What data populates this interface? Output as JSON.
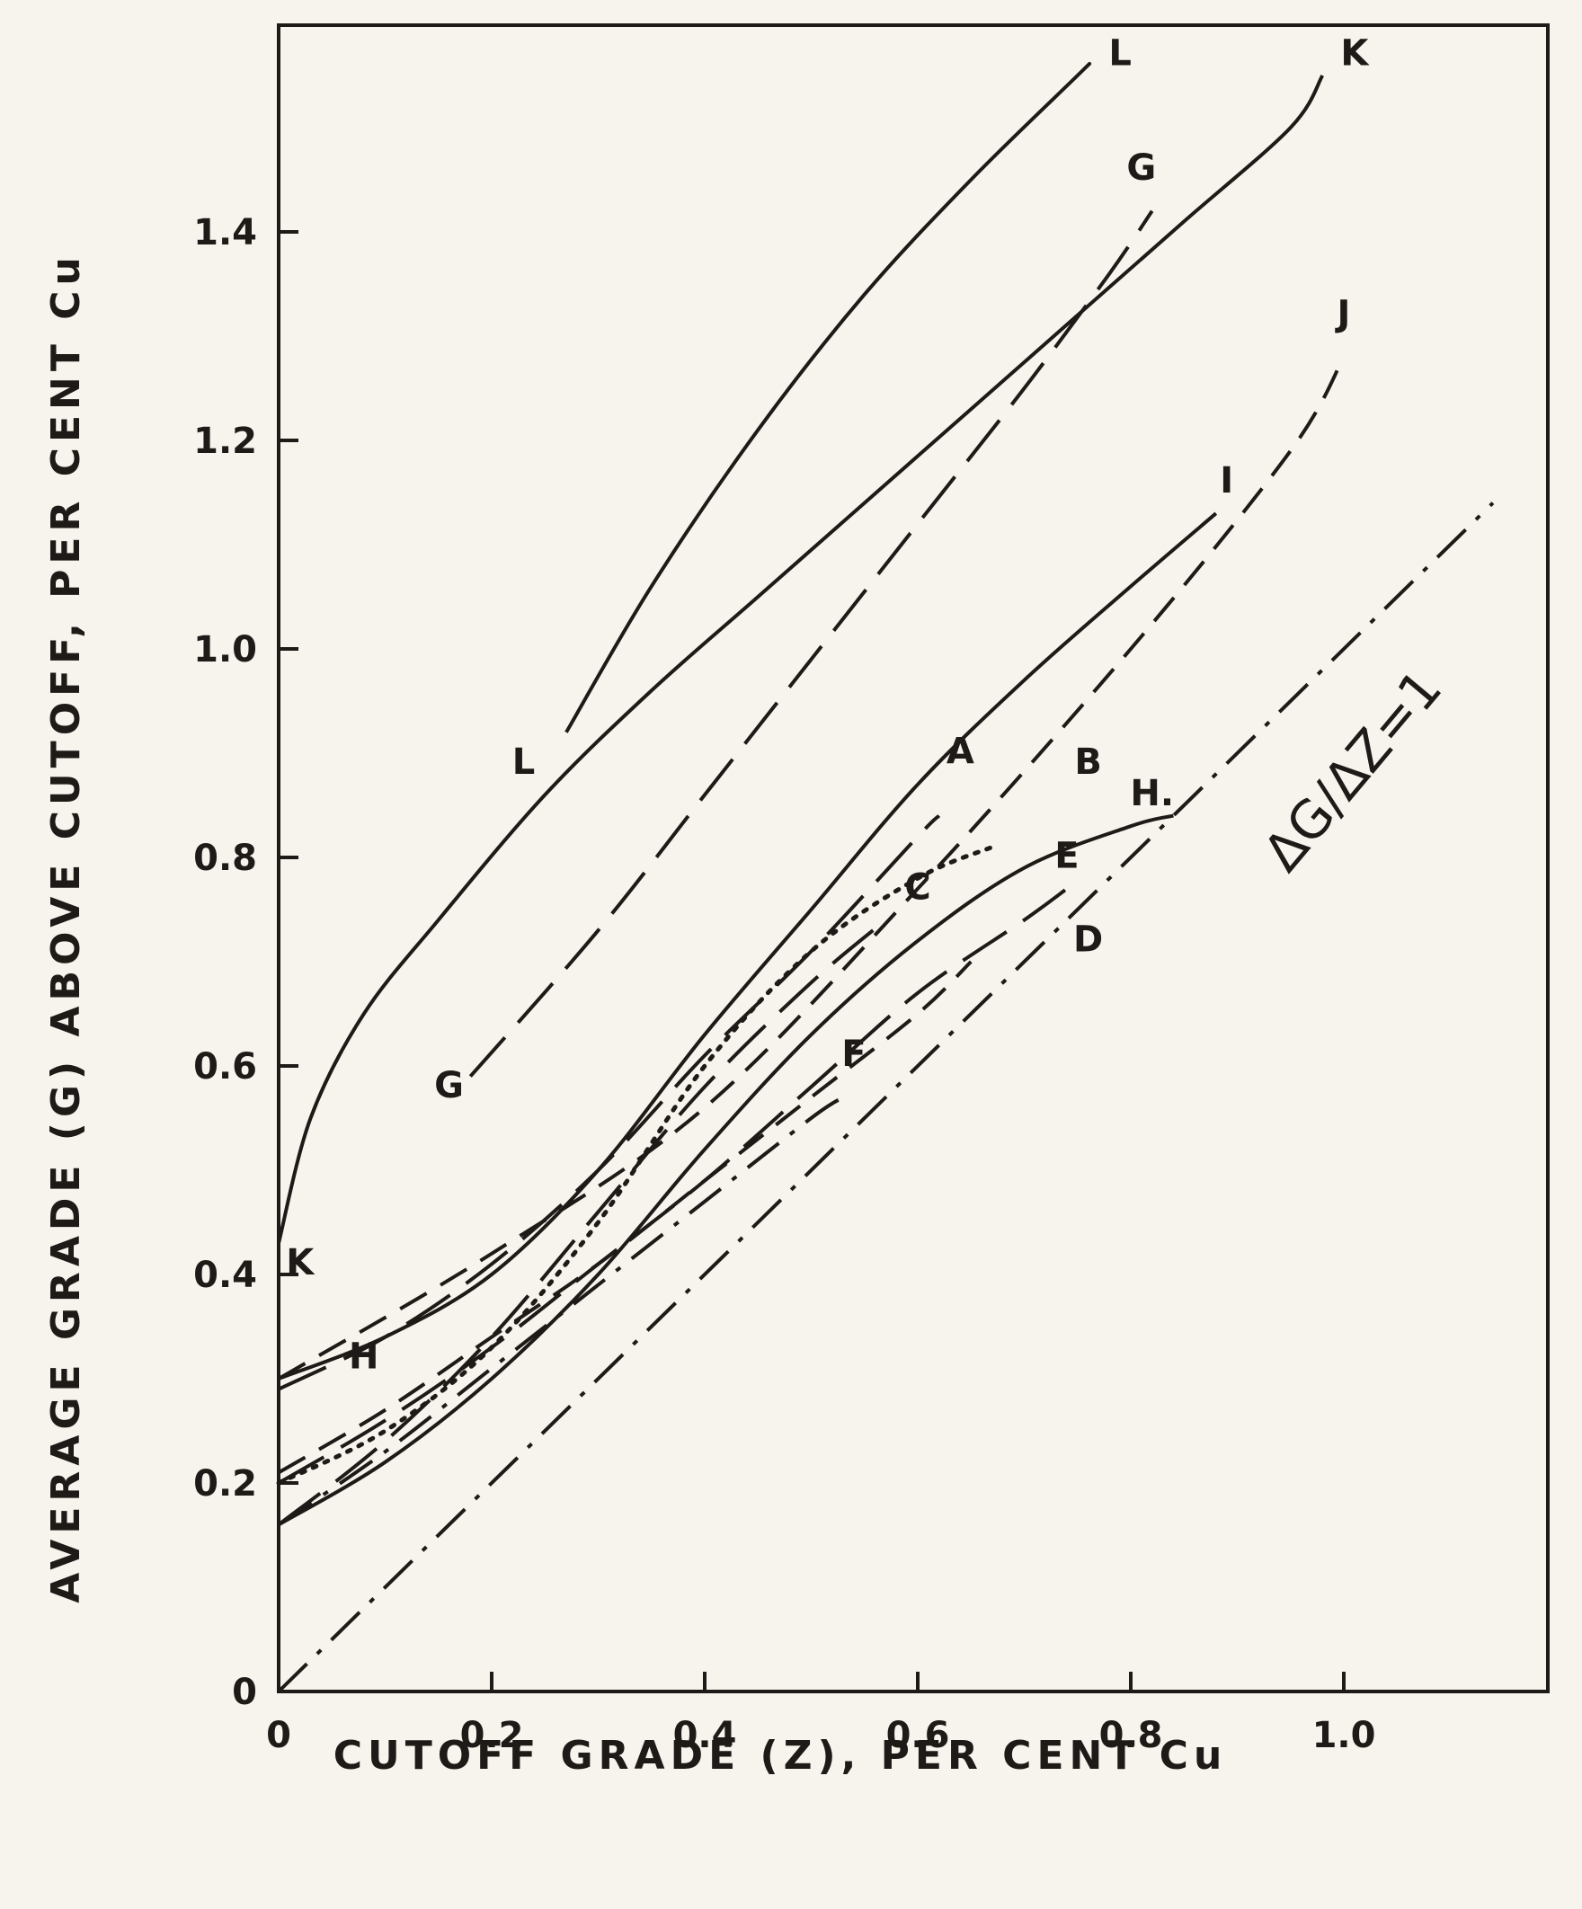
{
  "chart_data": {
    "type": "line",
    "title": "",
    "xlabel": "CUTOFF GRADE (Z), PER CENT Cu",
    "ylabel": "AVERAGE GRADE (G) ABOVE CUTOFF, PER CENT Cu",
    "xlim": [
      0,
      1.2
    ],
    "ylim": [
      0,
      1.6
    ],
    "x_ticks": [
      {
        "value": 0,
        "label": "0"
      },
      {
        "value": 0.2,
        "label": "0.2"
      },
      {
        "value": 0.4,
        "label": "0.4"
      },
      {
        "value": 0.6,
        "label": "0.6"
      },
      {
        "value": 0.8,
        "label": "0.8"
      },
      {
        "value": 1.0,
        "label": "1.0"
      }
    ],
    "y_ticks": [
      {
        "value": 0,
        "label": "0"
      },
      {
        "value": 0.2,
        "label": "0.2"
      },
      {
        "value": 0.4,
        "label": "0.4"
      },
      {
        "value": 0.6,
        "label": "0.6"
      },
      {
        "value": 0.8,
        "label": "0.8"
      },
      {
        "value": 1.0,
        "label": "1.0"
      },
      {
        "value": 1.2,
        "label": "1.2"
      },
      {
        "value": 1.4,
        "label": "1.4"
      }
    ],
    "grid": false,
    "annotation": "ΔG/ΔZ=1",
    "series": [
      {
        "name": "L",
        "style": "solid",
        "points": [
          [
            0.27,
            0.92
          ],
          [
            0.35,
            1.06
          ],
          [
            0.45,
            1.21
          ],
          [
            0.55,
            1.34
          ],
          [
            0.65,
            1.45
          ],
          [
            0.75,
            1.55
          ],
          [
            0.76,
            1.56
          ]
        ]
      },
      {
        "name": "K",
        "style": "solid",
        "points": [
          [
            0,
            0.43
          ],
          [
            0.03,
            0.55
          ],
          [
            0.08,
            0.65
          ],
          [
            0.15,
            0.74
          ],
          [
            0.25,
            0.86
          ],
          [
            0.35,
            0.96
          ],
          [
            0.45,
            1.05
          ],
          [
            0.55,
            1.14
          ],
          [
            0.65,
            1.23
          ],
          [
            0.75,
            1.32
          ],
          [
            0.85,
            1.41
          ],
          [
            0.95,
            1.5
          ],
          [
            0.98,
            1.55
          ]
        ]
      },
      {
        "name": "G",
        "style": "long-dash",
        "points": [
          [
            0.18,
            0.59
          ],
          [
            0.3,
            0.73
          ],
          [
            0.4,
            0.86
          ],
          [
            0.5,
            0.99
          ],
          [
            0.6,
            1.12
          ],
          [
            0.7,
            1.25
          ],
          [
            0.78,
            1.36
          ],
          [
            0.82,
            1.42
          ]
        ]
      },
      {
        "name": "J",
        "style": "dash",
        "points": [
          [
            0,
            0.3
          ],
          [
            0.2,
            0.42
          ],
          [
            0.4,
            0.56
          ],
          [
            0.6,
            0.77
          ],
          [
            0.8,
            1.0
          ],
          [
            0.95,
            1.19
          ],
          [
            1.0,
            1.28
          ]
        ]
      },
      {
        "name": "I",
        "style": "solid",
        "points": [
          [
            0,
            0.3
          ],
          [
            0.1,
            0.34
          ],
          [
            0.2,
            0.4
          ],
          [
            0.3,
            0.5
          ],
          [
            0.4,
            0.63
          ],
          [
            0.5,
            0.75
          ],
          [
            0.6,
            0.87
          ],
          [
            0.7,
            0.97
          ],
          [
            0.8,
            1.06
          ],
          [
            0.88,
            1.13
          ]
        ]
      },
      {
        "name": "A",
        "style": "long-dash",
        "points": [
          [
            0,
            0.29
          ],
          [
            0.1,
            0.34
          ],
          [
            0.2,
            0.41
          ],
          [
            0.3,
            0.5
          ],
          [
            0.4,
            0.61
          ],
          [
            0.5,
            0.71
          ],
          [
            0.6,
            0.82
          ],
          [
            0.62,
            0.84
          ]
        ]
      },
      {
        "name": "B",
        "style": "dotted",
        "points": [
          [
            0,
            0.2
          ],
          [
            0.1,
            0.25
          ],
          [
            0.2,
            0.33
          ],
          [
            0.3,
            0.45
          ],
          [
            0.4,
            0.6
          ],
          [
            0.5,
            0.71
          ],
          [
            0.6,
            0.78
          ],
          [
            0.67,
            0.81
          ]
        ]
      },
      {
        "name": "C",
        "style": "long-dash",
        "points": [
          [
            0,
            0.16
          ],
          [
            0.1,
            0.24
          ],
          [
            0.2,
            0.34
          ],
          [
            0.3,
            0.46
          ],
          [
            0.4,
            0.58
          ],
          [
            0.5,
            0.68
          ],
          [
            0.57,
            0.74
          ]
        ]
      },
      {
        "name": "H",
        "style": "solid",
        "points": [
          [
            0,
            0.16
          ],
          [
            0.1,
            0.22
          ],
          [
            0.2,
            0.3
          ],
          [
            0.3,
            0.4
          ],
          [
            0.4,
            0.52
          ],
          [
            0.5,
            0.63
          ],
          [
            0.6,
            0.72
          ],
          [
            0.7,
            0.79
          ],
          [
            0.8,
            0.83
          ],
          [
            0.84,
            0.84
          ]
        ]
      },
      {
        "name": "E",
        "style": "long-dash",
        "points": [
          [
            0,
            0.2
          ],
          [
            0.1,
            0.26
          ],
          [
            0.2,
            0.33
          ],
          [
            0.3,
            0.41
          ],
          [
            0.4,
            0.49
          ],
          [
            0.5,
            0.58
          ],
          [
            0.6,
            0.67
          ],
          [
            0.7,
            0.74
          ],
          [
            0.74,
            0.77
          ]
        ]
      },
      {
        "name": "D",
        "style": "dash",
        "points": [
          [
            0,
            0.21
          ],
          [
            0.1,
            0.27
          ],
          [
            0.2,
            0.34
          ],
          [
            0.3,
            0.41
          ],
          [
            0.4,
            0.49
          ],
          [
            0.5,
            0.57
          ],
          [
            0.6,
            0.65
          ],
          [
            0.65,
            0.7
          ]
        ]
      },
      {
        "name": "F",
        "style": "dash-dot",
        "points": [
          [
            0,
            0.16
          ],
          [
            0.1,
            0.23
          ],
          [
            0.2,
            0.31
          ],
          [
            0.3,
            0.39
          ],
          [
            0.4,
            0.47
          ],
          [
            0.5,
            0.55
          ],
          [
            0.53,
            0.57
          ]
        ]
      },
      {
        "name": "ΔG/ΔZ=1",
        "style": "dash-dot",
        "points": [
          [
            0,
            0
          ],
          [
            1.14,
            1.14
          ]
        ]
      }
    ],
    "labels": [
      {
        "text": "L",
        "x": 0.79,
        "y": 1.56
      },
      {
        "text": "L",
        "x": 0.23,
        "y": 0.88
      },
      {
        "text": "K",
        "x": 1.01,
        "y": 1.56
      },
      {
        "text": "K",
        "x": 0.02,
        "y": 0.4
      },
      {
        "text": "G",
        "x": 0.81,
        "y": 1.45
      },
      {
        "text": "G",
        "x": 0.16,
        "y": 0.57
      },
      {
        "text": "J",
        "x": 1.0,
        "y": 1.31
      },
      {
        "text": "I",
        "x": 0.89,
        "y": 1.15
      },
      {
        "text": "A",
        "x": 0.64,
        "y": 0.89
      },
      {
        "text": "B",
        "x": 0.76,
        "y": 0.88
      },
      {
        "text": "C",
        "x": 0.6,
        "y": 0.76
      },
      {
        "text": "H.",
        "x": 0.82,
        "y": 0.85
      },
      {
        "text": "H",
        "x": 0.08,
        "y": 0.31
      },
      {
        "text": "E",
        "x": 0.74,
        "y": 0.79
      },
      {
        "text": "D",
        "x": 0.76,
        "y": 0.71
      },
      {
        "text": "F",
        "x": 0.54,
        "y": 0.6
      }
    ]
  }
}
